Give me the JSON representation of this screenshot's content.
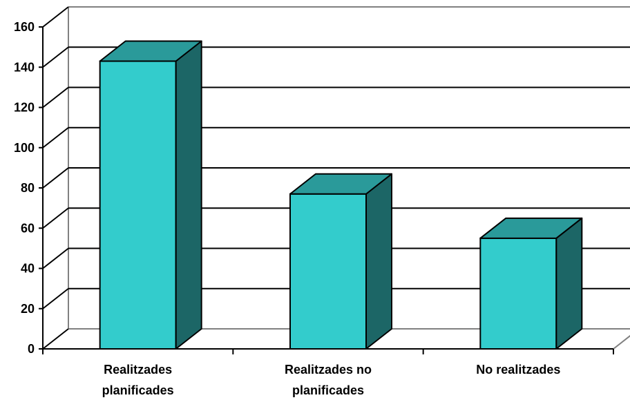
{
  "chart_data": {
    "type": "bar",
    "categories": [
      "Realitzades planificades",
      "Realitzades no planificades",
      "No realitzades"
    ],
    "category_lines": [
      [
        "Realitzades",
        "planificades"
      ],
      [
        "Realitzades no",
        "planificades"
      ],
      [
        "No realitzades"
      ]
    ],
    "values": [
      143,
      77,
      55
    ],
    "ylim": [
      0,
      160
    ],
    "yticks": [
      0,
      20,
      40,
      60,
      80,
      100,
      120,
      140,
      160
    ],
    "grid": true,
    "three_d": true,
    "colors": {
      "bar_front": "#33CCCC",
      "bar_top": "#2A9A9A",
      "bar_side": "#1C6666",
      "wall": "#808080",
      "gridline": "#000000"
    }
  }
}
